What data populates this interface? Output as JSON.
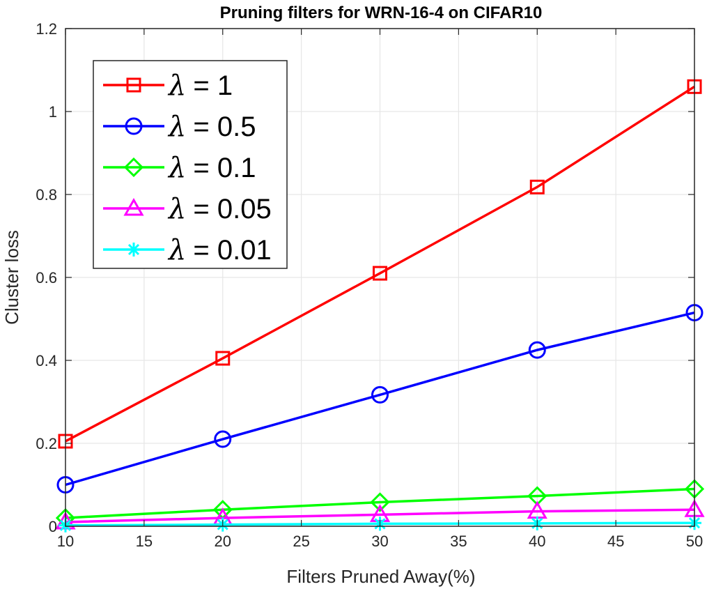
{
  "chart_data": {
    "type": "line",
    "title": "Pruning filters for WRN-16-4 on CIFAR10",
    "xlabel": "Filters Pruned Away(%)",
    "ylabel": "Cluster loss",
    "x": [
      10,
      20,
      30,
      40,
      50
    ],
    "xlim": [
      10,
      50
    ],
    "ylim": [
      0,
      1.2
    ],
    "xticks": [
      10,
      15,
      20,
      25,
      30,
      35,
      40,
      45,
      50
    ],
    "yticks": [
      0,
      0.2,
      0.4,
      0.6,
      0.8,
      1,
      1.2
    ],
    "grid": true,
    "legend_position": "top-left",
    "series": [
      {
        "name": "λ = 1",
        "lambda_symbol": "λ",
        "lambda_value": "= 1",
        "color": "#ff0000",
        "marker": "square",
        "values": [
          0.205,
          0.405,
          0.61,
          0.818,
          1.06
        ]
      },
      {
        "name": "λ = 0.5",
        "lambda_symbol": "λ",
        "lambda_value": "= 0.5",
        "color": "#0000ff",
        "marker": "circle",
        "values": [
          0.1,
          0.21,
          0.317,
          0.425,
          0.515
        ]
      },
      {
        "name": "λ = 0.1",
        "lambda_symbol": "λ",
        "lambda_value": "= 0.1",
        "color": "#00ff00",
        "marker": "diamond",
        "values": [
          0.02,
          0.04,
          0.058,
          0.073,
          0.09
        ]
      },
      {
        "name": "λ = 0.05",
        "lambda_symbol": "λ",
        "lambda_value": "= 0.05",
        "color": "#ff00ff",
        "marker": "triangle",
        "values": [
          0.01,
          0.02,
          0.028,
          0.036,
          0.04
        ]
      },
      {
        "name": "λ = 0.01",
        "lambda_symbol": "λ",
        "lambda_value": "= 0.01",
        "color": "#00ffff",
        "marker": "asterisk",
        "values": [
          0.002,
          0.004,
          0.006,
          0.007,
          0.008
        ]
      }
    ]
  }
}
